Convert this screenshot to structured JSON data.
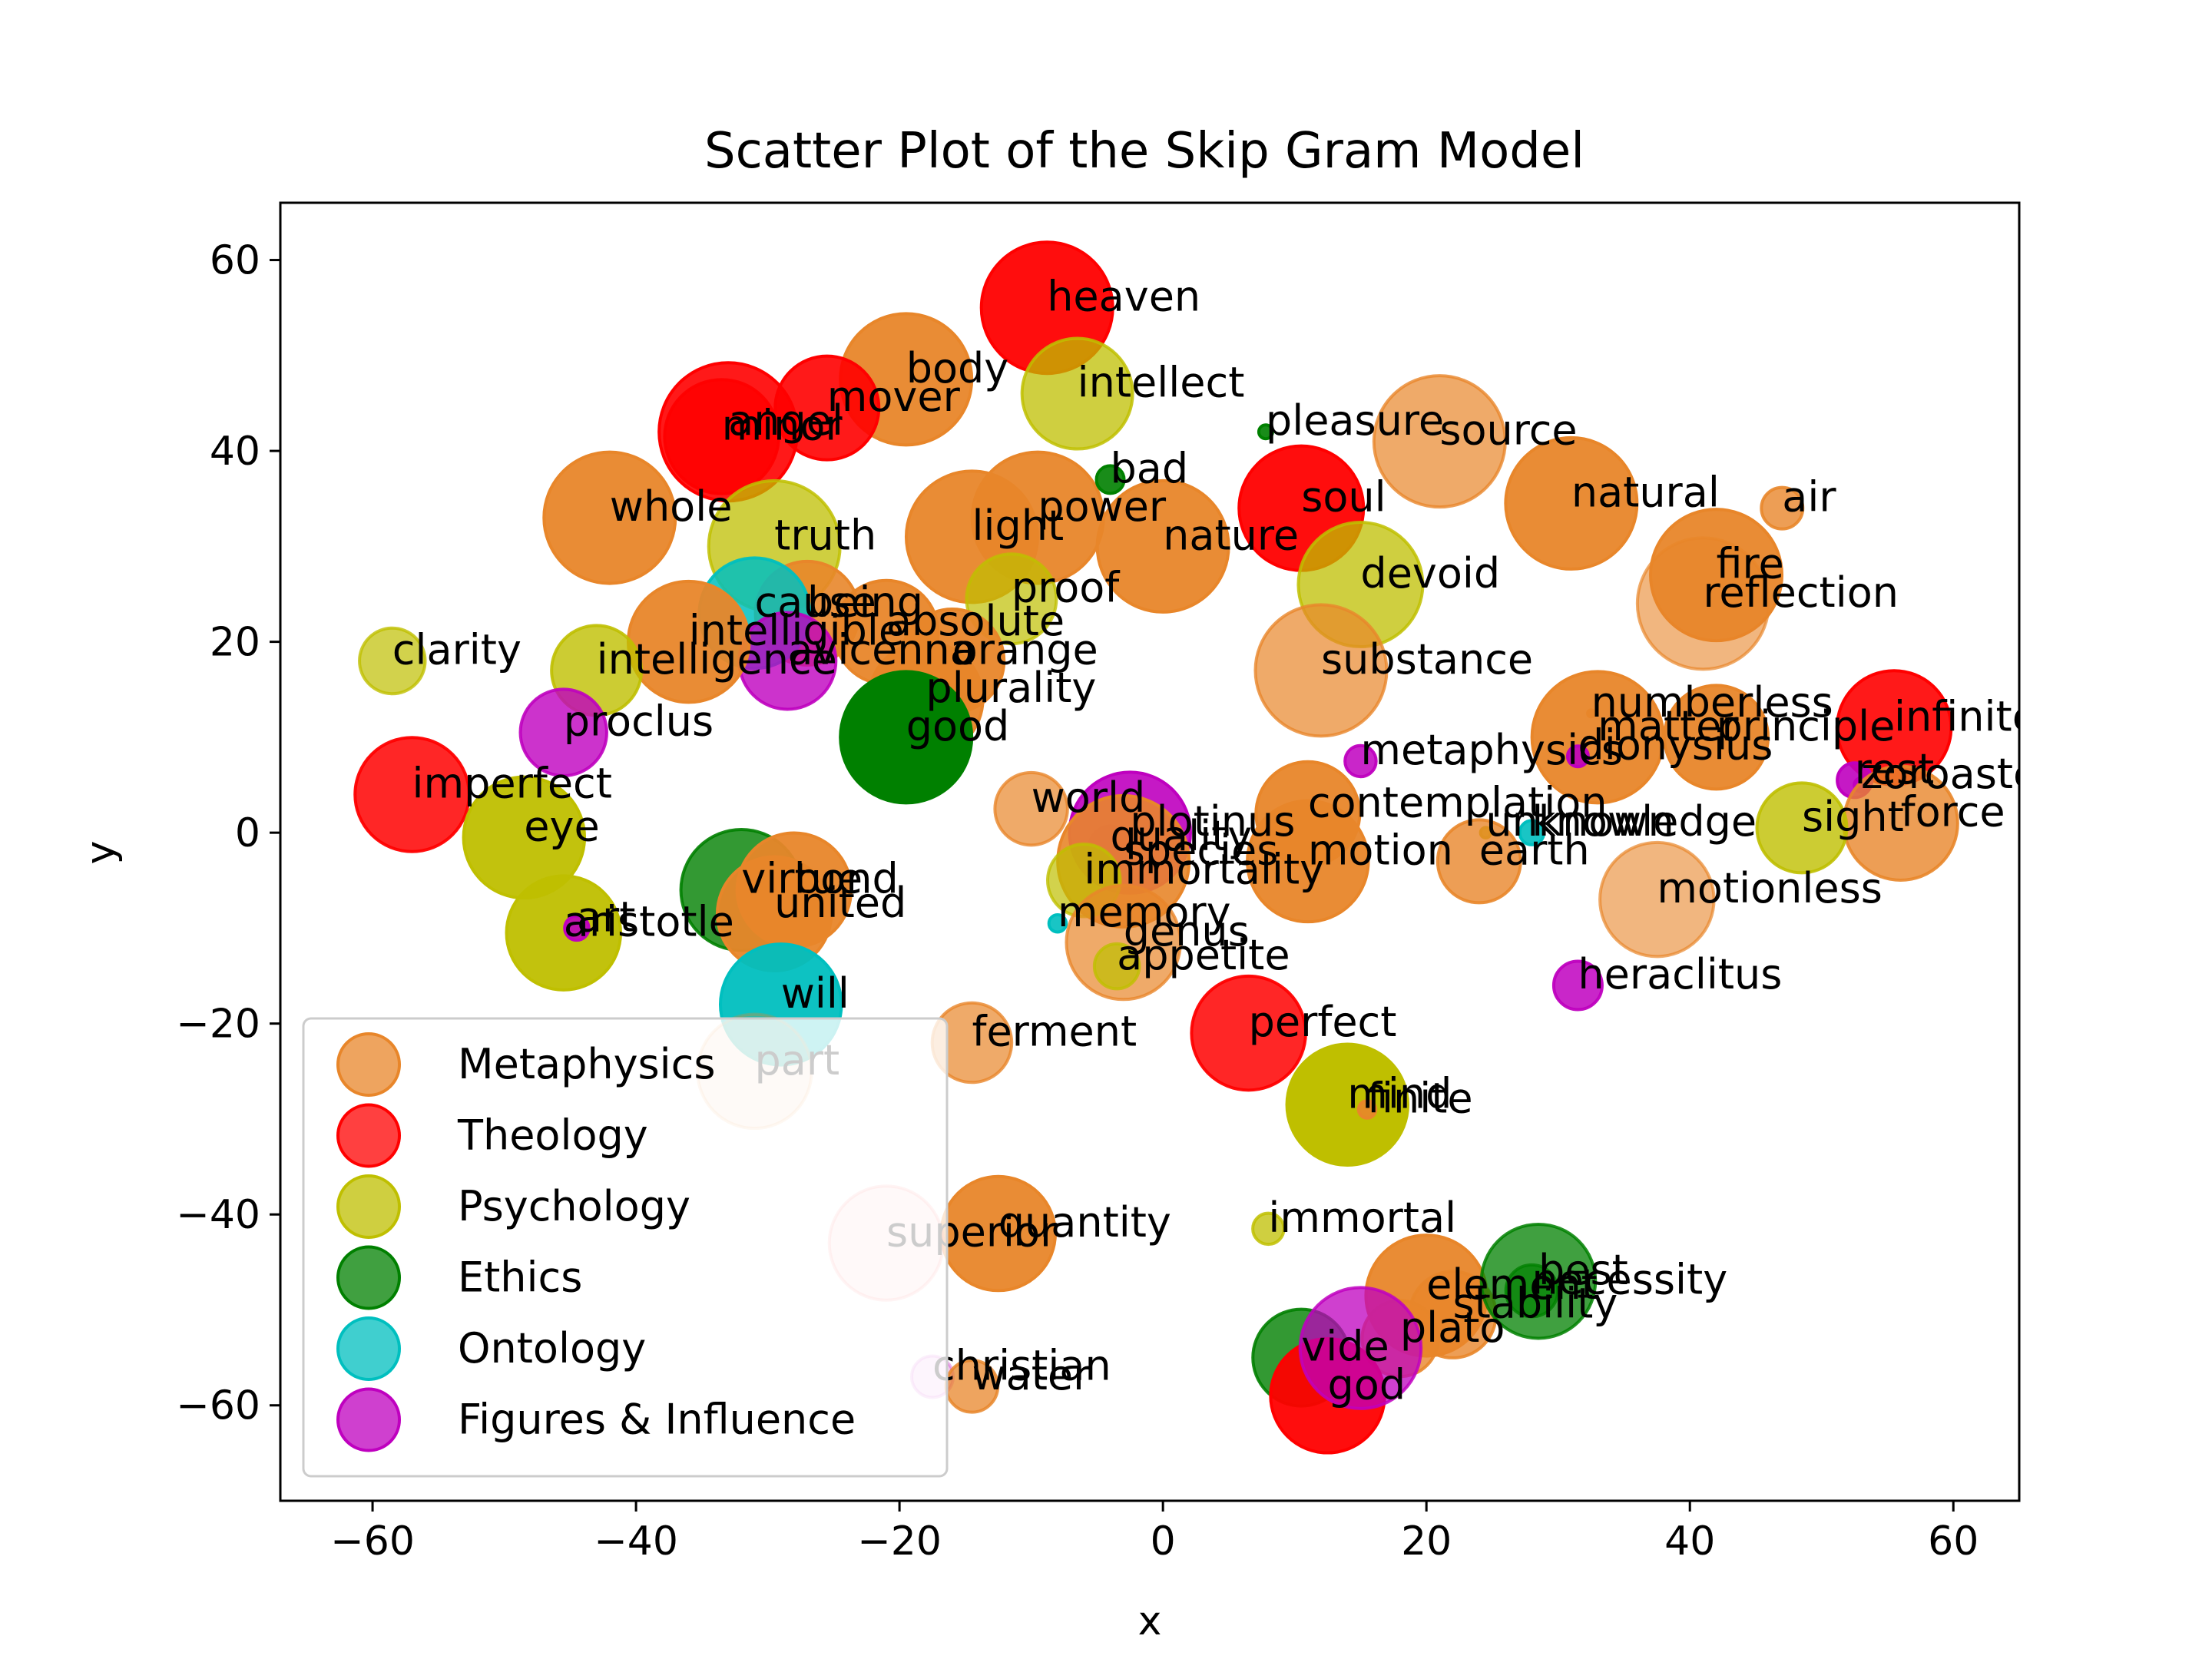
{
  "chart_data": {
    "type": "scatter",
    "title": "Scatter Plot of the Skip Gram Model",
    "xlabel": "x",
    "ylabel": "y",
    "xlim": [
      -67,
      65
    ],
    "ylim": [
      -70,
      66
    ],
    "xticks": [
      -60,
      -40,
      -20,
      0,
      20,
      40,
      60
    ],
    "yticks": [
      -60,
      -40,
      -20,
      0,
      20,
      40,
      60
    ],
    "xtick_labels": [
      "−60",
      "−40",
      "−20",
      "0",
      "20",
      "40",
      "60"
    ],
    "ytick_labels": [
      "−60",
      "−40",
      "−20",
      "0",
      "20",
      "40",
      "60"
    ],
    "grid": false,
    "legend_position": "lower left",
    "legend": [
      {
        "name": "Metaphysics",
        "color": "#e8862a"
      },
      {
        "name": "Theology",
        "color": "#ff0000"
      },
      {
        "name": "Psychology",
        "color": "#bfbf00"
      },
      {
        "name": "Ethics",
        "color": "#008000"
      },
      {
        "name": "Ontology",
        "color": "#00bfbf"
      },
      {
        "name": "Figures & Influence",
        "color": "#bf00bf"
      }
    ],
    "points": [
      {
        "label": "body",
        "x": -19.5,
        "y": 47.5,
        "size": 3.8,
        "category": 0,
        "alpha": 0.95
      },
      {
        "label": "mover",
        "x": -25.5,
        "y": 44.5,
        "size": 3.0,
        "category": 1,
        "alpha": 0.9
      },
      {
        "label": "angel",
        "x": -33,
        "y": 42,
        "size": 4.0,
        "category": 1,
        "alpha": 0.9
      },
      {
        "label": "minor",
        "x": -33.5,
        "y": 41.5,
        "size": 3.3,
        "category": 1,
        "alpha": 0.85
      },
      {
        "label": "heaven",
        "x": -8.8,
        "y": 55,
        "size": 3.8,
        "category": 1,
        "alpha": 0.95
      },
      {
        "label": "intellect",
        "x": -6.5,
        "y": 46,
        "size": 3.2,
        "category": 2,
        "alpha": 0.75
      },
      {
        "label": "pleasure",
        "x": 7.8,
        "y": 42,
        "size": 0.4,
        "category": 3,
        "alpha": 0.9
      },
      {
        "label": "source",
        "x": 21,
        "y": 41,
        "size": 3.8,
        "category": 0,
        "alpha": 0.7
      },
      {
        "label": "whole",
        "x": -42,
        "y": 33,
        "size": 3.8,
        "category": 0,
        "alpha": 0.95
      },
      {
        "label": "truth",
        "x": -29.5,
        "y": 30,
        "size": 3.8,
        "category": 2,
        "alpha": 0.75
      },
      {
        "label": "light",
        "x": -14.5,
        "y": 31,
        "size": 3.8,
        "category": 0,
        "alpha": 0.95
      },
      {
        "label": "power",
        "x": -9.5,
        "y": 33,
        "size": 3.8,
        "category": 0,
        "alpha": 0.95
      },
      {
        "label": "bad",
        "x": -4,
        "y": 37,
        "size": 0.8,
        "category": 3,
        "alpha": 0.9
      },
      {
        "label": "nature",
        "x": 0,
        "y": 30,
        "size": 3.8,
        "category": 0,
        "alpha": 0.95
      },
      {
        "label": "soul",
        "x": 10.5,
        "y": 34,
        "size": 3.6,
        "category": 1,
        "alpha": 0.95
      },
      {
        "label": "devoid",
        "x": 15,
        "y": 26,
        "size": 3.6,
        "category": 2,
        "alpha": 0.75
      },
      {
        "label": "natural",
        "x": 31,
        "y": 34.5,
        "size": 3.8,
        "category": 0,
        "alpha": 0.95
      },
      {
        "label": "air",
        "x": 47,
        "y": 34,
        "size": 1.2,
        "category": 0,
        "alpha": 0.8
      },
      {
        "label": "fire",
        "x": 42,
        "y": 27,
        "size": 3.8,
        "category": 0,
        "alpha": 0.95
      },
      {
        "label": "reflection",
        "x": 41,
        "y": 24,
        "size": 3.8,
        "category": 0,
        "alpha": 0.6
      },
      {
        "label": "proof",
        "x": -11.5,
        "y": 24.5,
        "size": 2.6,
        "category": 2,
        "alpha": 0.7
      },
      {
        "label": "being",
        "x": -27,
        "y": 23,
        "size": 3.0,
        "category": 0,
        "alpha": 0.9
      },
      {
        "label": "absolute",
        "x": -21,
        "y": 21,
        "size": 3.0,
        "category": 0,
        "alpha": 0.95
      },
      {
        "label": "cause",
        "x": -31,
        "y": 23,
        "size": 3.2,
        "category": 4,
        "alpha": 0.85
      },
      {
        "label": "avicenna",
        "x": -28.5,
        "y": 18,
        "size": 2.8,
        "category": 5,
        "alpha": 0.8
      },
      {
        "label": "intelligible",
        "x": -36,
        "y": 20,
        "size": 3.5,
        "category": 0,
        "alpha": 0.95
      },
      {
        "label": "clarity",
        "x": -58.5,
        "y": 18,
        "size": 1.9,
        "category": 2,
        "alpha": 0.7
      },
      {
        "label": "orange",
        "x": -16,
        "y": 18,
        "size": 3.0,
        "category": 0,
        "alpha": 0.95
      },
      {
        "label": "plurality",
        "x": -18,
        "y": 14,
        "size": 3.3,
        "category": 0,
        "alpha": 0.95
      },
      {
        "label": "substance",
        "x": 12,
        "y": 17,
        "size": 3.8,
        "category": 0,
        "alpha": 0.7
      },
      {
        "label": "intelligence",
        "x": -43,
        "y": 17,
        "size": 2.6,
        "category": 2,
        "alpha": 0.8
      },
      {
        "label": "good",
        "x": -19.5,
        "y": 10,
        "size": 3.8,
        "category": 3,
        "alpha": 1.0
      },
      {
        "label": "proclus",
        "x": -45.5,
        "y": 10.5,
        "size": 2.5,
        "category": 5,
        "alpha": 0.8
      },
      {
        "label": "numberless",
        "x": 32.5,
        "y": 12.5,
        "size": 0.2,
        "category": 0,
        "alpha": 1.0
      },
      {
        "label": "matter",
        "x": 33,
        "y": 10,
        "size": 3.8,
        "category": 0,
        "alpha": 0.95
      },
      {
        "label": "principle",
        "x": 42,
        "y": 10,
        "size": 3.0,
        "category": 0,
        "alpha": 0.95
      },
      {
        "label": "dionysius",
        "x": 31.5,
        "y": 8,
        "size": 0.6,
        "category": 5,
        "alpha": 0.9
      },
      {
        "label": "infinite",
        "x": 55.5,
        "y": 11,
        "size": 3.3,
        "category": 1,
        "alpha": 0.9
      },
      {
        "label": "metaphysics",
        "x": 15,
        "y": 7.5,
        "size": 0.9,
        "category": 5,
        "alpha": 0.85
      },
      {
        "label": "imperfect",
        "x": -57,
        "y": 4,
        "size": 3.3,
        "category": 1,
        "alpha": 0.85
      },
      {
        "label": "rest",
        "x": 52.5,
        "y": 5.5,
        "size": 1.0,
        "category": 5,
        "alpha": 0.9
      },
      {
        "label": "zoroaster",
        "x": 53,
        "y": 5,
        "size": 0.4,
        "category": 5,
        "alpha": 0.9
      },
      {
        "label": "force",
        "x": 56,
        "y": 1,
        "size": 3.3,
        "category": 0,
        "alpha": 0.8
      },
      {
        "label": "sight",
        "x": 48.5,
        "y": 0.5,
        "size": 2.6,
        "category": 2,
        "alpha": 0.8
      },
      {
        "label": "knowledge",
        "x": 28,
        "y": 0,
        "size": 0.7,
        "category": 4,
        "alpha": 0.9
      },
      {
        "label": "unknown",
        "x": 24.5,
        "y": 0,
        "size": 0.3,
        "category": 2,
        "alpha": 0.9
      },
      {
        "label": "earth",
        "x": 24,
        "y": -3,
        "size": 2.4,
        "category": 0,
        "alpha": 0.8
      },
      {
        "label": "world",
        "x": -10,
        "y": 2.5,
        "size": 2.1,
        "category": 0,
        "alpha": 0.7
      },
      {
        "label": "contemplation",
        "x": 11,
        "y": 2,
        "size": 3.0,
        "category": 0,
        "alpha": 0.95
      },
      {
        "label": "motion",
        "x": 11,
        "y": -3,
        "size": 3.5,
        "category": 0,
        "alpha": 0.95
      },
      {
        "label": "plotinus",
        "x": -2.5,
        "y": 0,
        "size": 3.5,
        "category": 5,
        "alpha": 0.9
      },
      {
        "label": "quality",
        "x": -4,
        "y": -1.5,
        "size": 1.2,
        "category": 5,
        "alpha": 0.8
      },
      {
        "label": "species",
        "x": -3,
        "y": -3,
        "size": 3.8,
        "category": 0,
        "alpha": 0.9
      },
      {
        "label": "immortality",
        "x": -6,
        "y": -5,
        "size": 2.1,
        "category": 2,
        "alpha": 0.7
      },
      {
        "label": "motionless",
        "x": 37.5,
        "y": -7,
        "size": 3.3,
        "category": 0,
        "alpha": 0.6
      },
      {
        "label": "eye",
        "x": -48.5,
        "y": -0.5,
        "size": 3.5,
        "category": 2,
        "alpha": 0.95
      },
      {
        "label": "virtue",
        "x": -32,
        "y": -6,
        "size": 3.5,
        "category": 3,
        "alpha": 0.8
      },
      {
        "label": "bond",
        "x": -28,
        "y": -6,
        "size": 3.3,
        "category": 0,
        "alpha": 0.95
      },
      {
        "label": "united",
        "x": -29.5,
        "y": -8.5,
        "size": 3.3,
        "category": 0,
        "alpha": 0.95
      },
      {
        "label": "aristotle",
        "x": -45.5,
        "y": -10.5,
        "size": 3.3,
        "category": 2,
        "alpha": 0.95
      },
      {
        "label": "art",
        "x": -44.5,
        "y": -10,
        "size": 0.7,
        "category": 5,
        "alpha": 0.9
      },
      {
        "label": "memory",
        "x": -8,
        "y": -9.5,
        "size": 0.5,
        "category": 4,
        "alpha": 0.9
      },
      {
        "label": "genus",
        "x": -3,
        "y": -11.5,
        "size": 3.3,
        "category": 0,
        "alpha": 0.7
      },
      {
        "label": "appetite",
        "x": -3.5,
        "y": -14,
        "size": 1.3,
        "category": 2,
        "alpha": 0.7
      },
      {
        "label": "heraclitus",
        "x": 31.5,
        "y": -16,
        "size": 1.4,
        "category": 5,
        "alpha": 0.85
      },
      {
        "label": "will",
        "x": -29,
        "y": -18,
        "size": 3.5,
        "category": 4,
        "alpha": 0.95
      },
      {
        "label": "ferment",
        "x": -14.5,
        "y": -22,
        "size": 2.3,
        "category": 0,
        "alpha": 0.7
      },
      {
        "label": "perfect",
        "x": 6.5,
        "y": -21,
        "size": 3.3,
        "category": 1,
        "alpha": 0.85
      },
      {
        "label": "part",
        "x": -31,
        "y": -25,
        "size": 3.3,
        "category": 0,
        "alpha": 0.2
      },
      {
        "label": "mind",
        "x": 14,
        "y": -28.5,
        "size": 3.5,
        "category": 2,
        "alpha": 1.0
      },
      {
        "label": "finite",
        "x": 15.5,
        "y": -29,
        "size": 0.5,
        "category": 0,
        "alpha": 0.9
      },
      {
        "label": "quantity",
        "x": -12.5,
        "y": -42,
        "size": 3.3,
        "category": 0,
        "alpha": 0.95
      },
      {
        "label": "superior",
        "x": -21,
        "y": -43,
        "size": 3.3,
        "category": 1,
        "alpha": 0.12
      },
      {
        "label": "immortal",
        "x": 8,
        "y": -41.5,
        "size": 0.9,
        "category": 2,
        "alpha": 0.75
      },
      {
        "label": "element",
        "x": 20,
        "y": -48.5,
        "size": 3.5,
        "category": 0,
        "alpha": 0.95
      },
      {
        "label": "stability",
        "x": 22,
        "y": -50.5,
        "size": 2.5,
        "category": 0,
        "alpha": 0.8
      },
      {
        "label": "best",
        "x": 28.5,
        "y": -47,
        "size": 3.3,
        "category": 3,
        "alpha": 0.75
      },
      {
        "label": "necessity",
        "x": 28,
        "y": -48,
        "size": 1.5,
        "category": 3,
        "alpha": 0.7
      },
      {
        "label": "plato",
        "x": 18,
        "y": -53,
        "size": 2.2,
        "category": 0,
        "alpha": 0.8
      },
      {
        "label": "vide",
        "x": 10.5,
        "y": -55,
        "size": 2.8,
        "category": 3,
        "alpha": 0.8
      },
      {
        "label": "god",
        "x": 12.5,
        "y": -59,
        "size": 3.3,
        "category": 1,
        "alpha": 0.95
      },
      {
        "label": "",
        "x": 15,
        "y": -54,
        "size": 3.5,
        "category": 5,
        "alpha": 0.75
      },
      {
        "label": "christian",
        "x": -17.5,
        "y": -57,
        "size": 1.2,
        "category": 5,
        "alpha": 0.2
      },
      {
        "label": "water",
        "x": -14.5,
        "y": -58,
        "size": 1.5,
        "category": 0,
        "alpha": 0.75
      }
    ]
  }
}
